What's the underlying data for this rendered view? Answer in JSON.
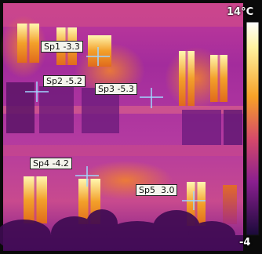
{
  "thermal_view": {
    "scale_max": "14°C",
    "scale_min": "-4",
    "spots": [
      {
        "label": "Sp1 -3.3"
      },
      {
        "label": "Sp2 -5.2"
      },
      {
        "label": "Sp3 -5.3"
      },
      {
        "label": "Sp4 -4.2"
      },
      {
        "label": "Sp5  3.0"
      }
    ]
  },
  "colors": {
    "cold": "#2a0a4a",
    "mid": "#b1279a",
    "warm": "#f07a1a",
    "hot": "#fff6a8",
    "crosshair": "#9fd6ff"
  }
}
